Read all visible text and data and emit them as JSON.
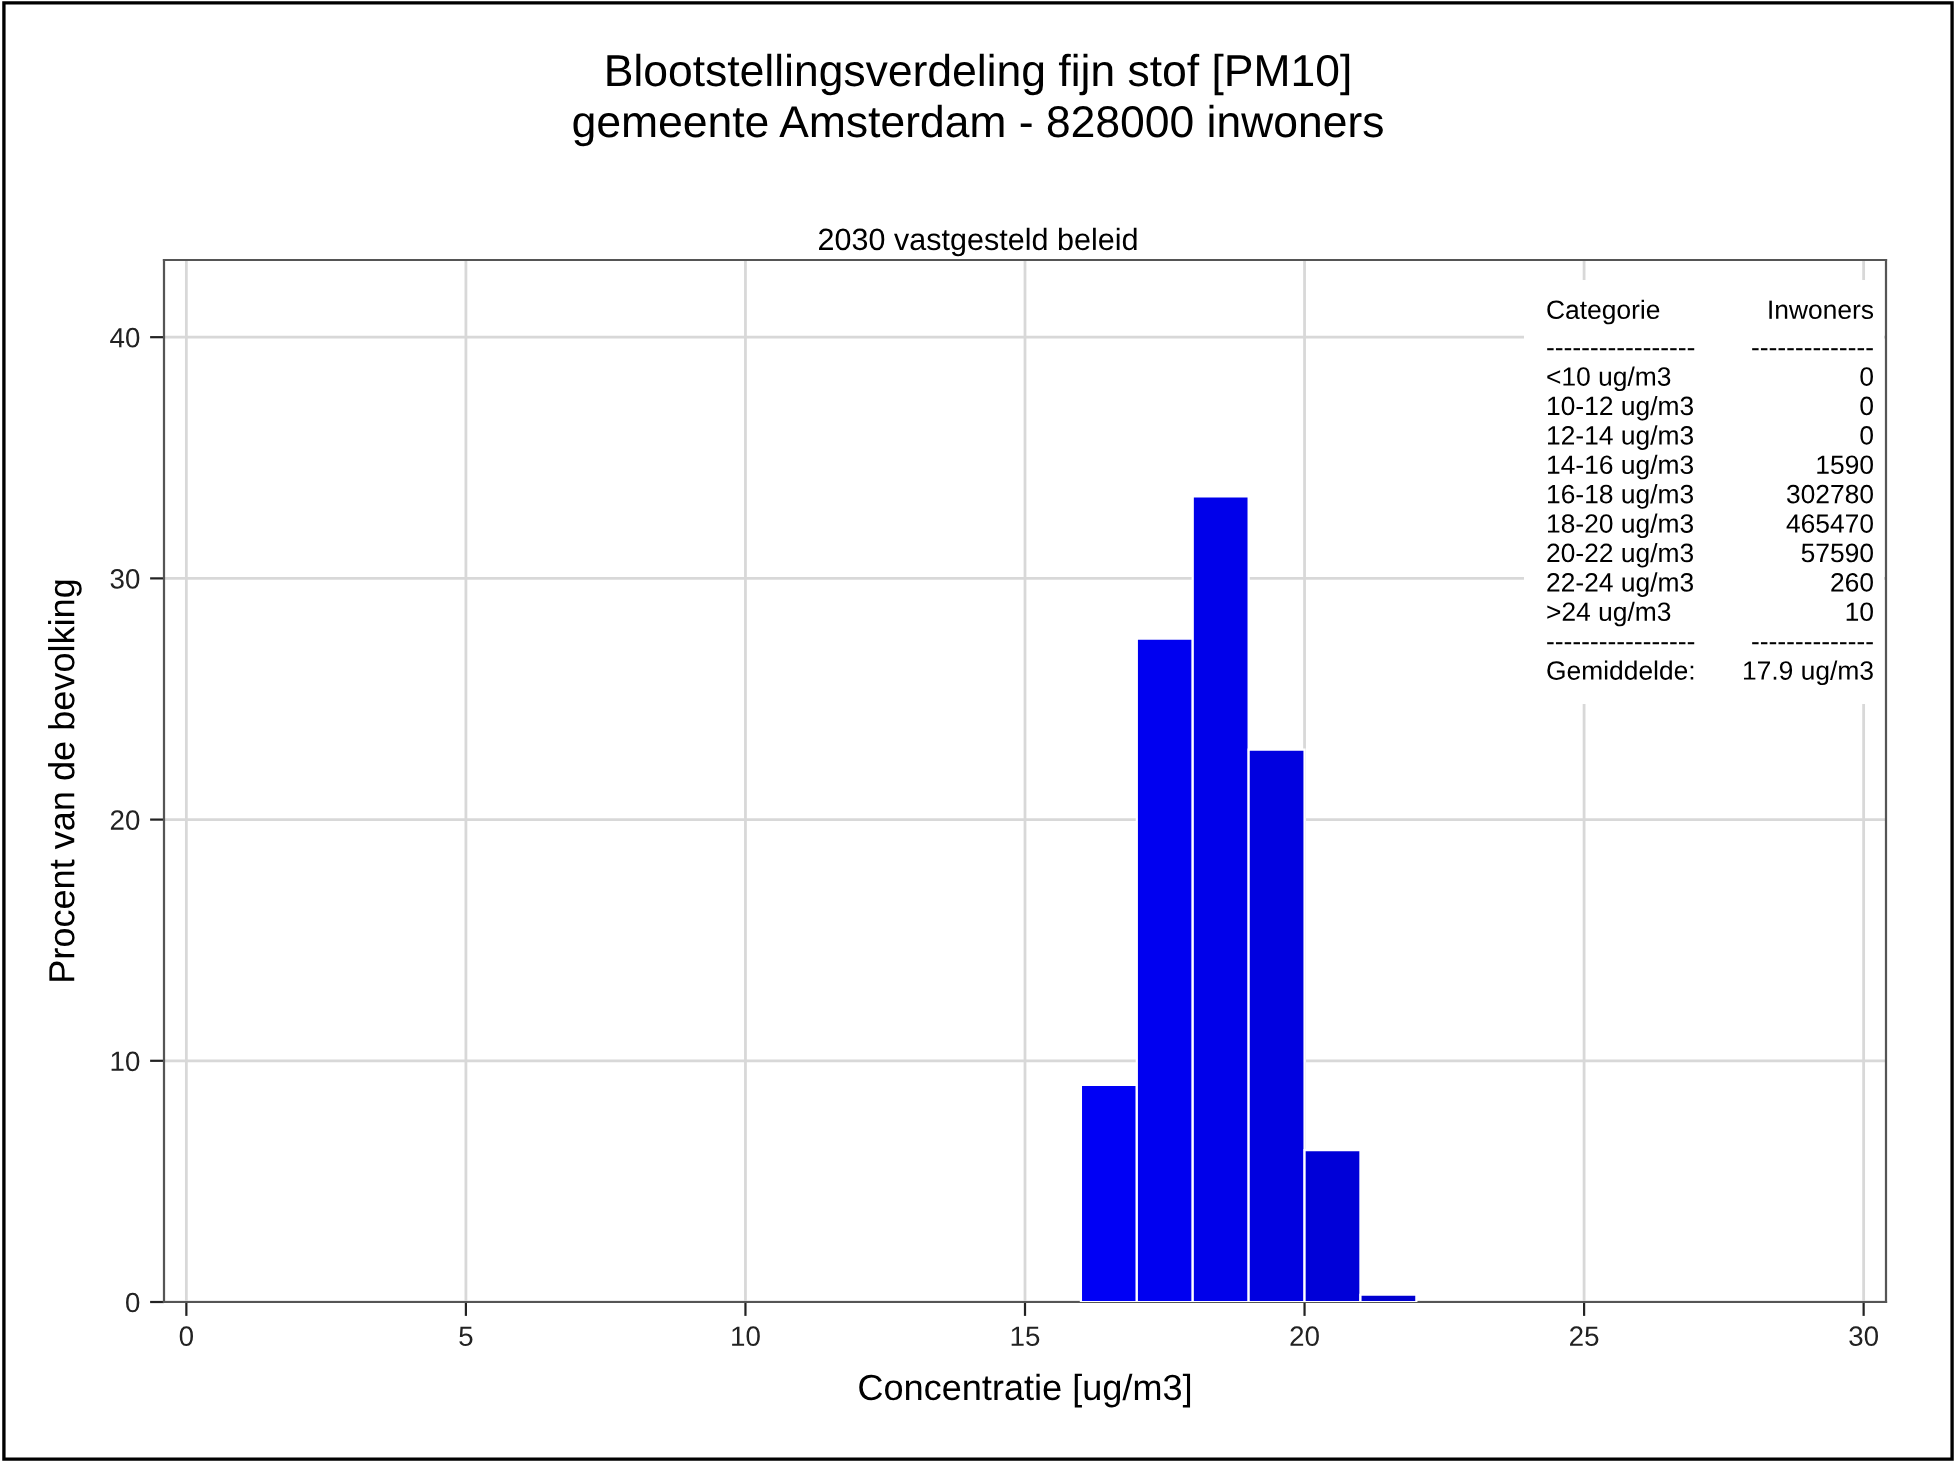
{
  "chart_data": {
    "type": "histogram",
    "title": "Blootstellingsverdeling fijn stof [PM10]\ngemeente Amsterdam - 828000 inwoners",
    "subtitle": "2030 vastgesteld beleid",
    "xlabel": "Concentratie [ug/m3]",
    "ylabel": "Procent van de bevolking",
    "bins": [
      16,
      17,
      18,
      19,
      20,
      21,
      22
    ],
    "values": [
      9.0,
      27.5,
      33.4,
      22.9,
      6.3,
      0.3
    ],
    "colors": [
      "#0000f5",
      "#0000f0",
      "#0000ea",
      "#0000e0",
      "#0000d8",
      "#0000d0"
    ],
    "xlim": [
      -0.4,
      30.4
    ],
    "xticks": [
      0,
      5,
      10,
      15,
      20,
      25,
      30
    ],
    "ylim": [
      0,
      43.2
    ],
    "yticks": [
      0,
      10,
      20,
      30,
      40
    ],
    "grid": true,
    "annotations": [
      "Categorie",
      "Inwoners",
      "-----------------",
      "--------------",
      "<10 ug/m3",
      "0",
      "10-12 ug/m3",
      "0",
      "12-14 ug/m3",
      "0",
      "14-16 ug/m3",
      "1590",
      "16-18 ug/m3",
      "302780",
      "18-20 ug/m3",
      "465470",
      "20-22 ug/m3",
      "57590",
      "22-24 ug/m3",
      "260",
      ">24 ug/m3",
      "10",
      "-----------------",
      "--------------",
      "Gemiddelde:",
      "17.9 ug/m3"
    ]
  }
}
